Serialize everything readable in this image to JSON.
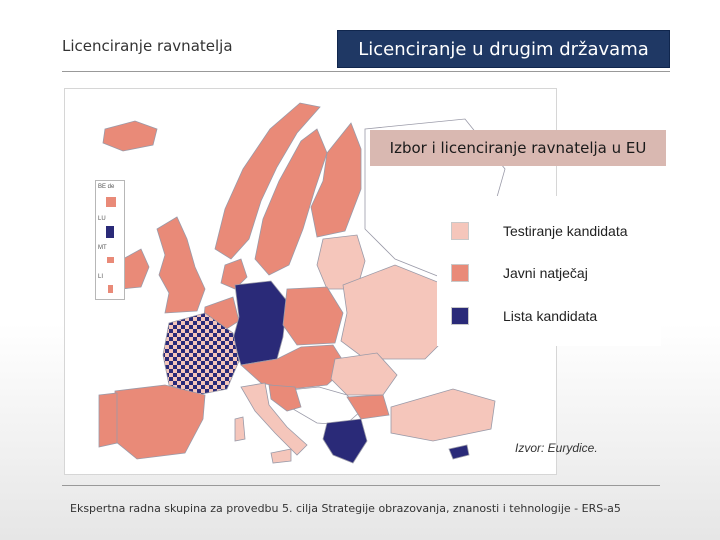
{
  "header": {
    "section_title": "Licenciranje ravnatelja",
    "banner": "Licenciranje u drugim državama"
  },
  "map": {
    "title": "Izbor i licenciranje ravnatelja u EU",
    "source": "Izvor: Eurydice.",
    "legend": [
      {
        "label": "Testiranje kandidata",
        "color": "#f5c6bb"
      },
      {
        "label": "Javni natječaj",
        "color": "#e98a78"
      },
      {
        "label": "Lista kandidata",
        "color": "#2a2a78"
      }
    ],
    "inset_labels": [
      "BE de",
      "LU",
      "MT",
      "LI"
    ],
    "colors": {
      "sea": "#ffffff",
      "non_eu": "#ffffff",
      "border": "#9a9aa8"
    }
  },
  "footer": {
    "text": "Ekspertna radna skupina za provedbu 5. cilja Strategije obrazovanja, znanosti i tehnologije - ERS-a5"
  }
}
